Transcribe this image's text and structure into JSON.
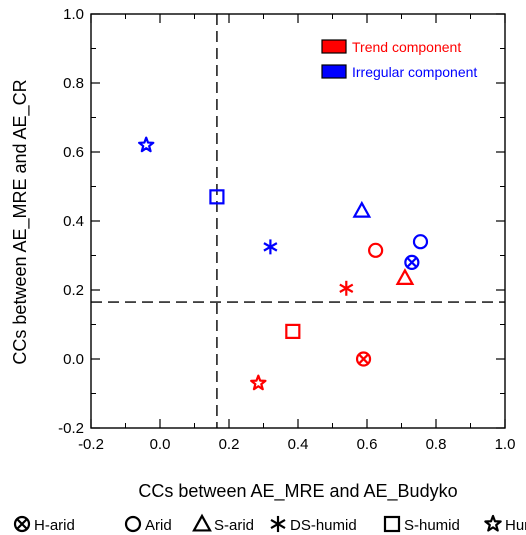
{
  "chart_data": {
    "type": "scatter",
    "xlabel": "CCs between AE_MRE and AE_Budyko",
    "ylabel": "CCs between AE_MRE and AE_CR",
    "xlim": [
      -0.2,
      1.0
    ],
    "ylim": [
      -0.2,
      1.0
    ],
    "x_ticks": [
      "-0.2",
      "0.0",
      "0.2",
      "0.4",
      "0.6",
      "0.8",
      "1.0"
    ],
    "y_ticks": [
      "-0.2",
      "0.0",
      "0.2",
      "0.4",
      "0.6",
      "0.8",
      "1.0"
    ],
    "reference_lines": {
      "x": 0.165,
      "y": 0.165,
      "style": "dashed"
    },
    "grid": false,
    "legend_placement": "top-right",
    "series": [
      {
        "name": "Trend component",
        "color": "#ff0000",
        "points": [
          {
            "climate": "H-arid",
            "marker": "circle-x",
            "x": 0.59,
            "y": 0.0
          },
          {
            "climate": "Arid",
            "marker": "circle",
            "x": 0.625,
            "y": 0.315
          },
          {
            "climate": "S-arid",
            "marker": "triangle",
            "x": 0.71,
            "y": 0.235
          },
          {
            "climate": "DS-humid",
            "marker": "asterisk",
            "x": 0.54,
            "y": 0.205
          },
          {
            "climate": "S-humid",
            "marker": "square",
            "x": 0.385,
            "y": 0.08
          },
          {
            "climate": "Humid",
            "marker": "star",
            "x": 0.285,
            "y": -0.07
          }
        ]
      },
      {
        "name": "Irregular component",
        "color": "#0000ff",
        "points": [
          {
            "climate": "H-arid",
            "marker": "circle-x",
            "x": 0.73,
            "y": 0.28
          },
          {
            "climate": "Arid",
            "marker": "circle",
            "x": 0.755,
            "y": 0.34
          },
          {
            "climate": "S-arid",
            "marker": "triangle",
            "x": 0.585,
            "y": 0.43
          },
          {
            "climate": "DS-humid",
            "marker": "asterisk",
            "x": 0.32,
            "y": 0.325
          },
          {
            "climate": "S-humid",
            "marker": "square",
            "x": 0.165,
            "y": 0.47
          },
          {
            "climate": "Humid",
            "marker": "star",
            "x": -0.04,
            "y": 0.62
          }
        ]
      }
    ],
    "shape_legend": [
      {
        "marker": "circle-x",
        "label": "H-arid"
      },
      {
        "marker": "circle",
        "label": "Arid"
      },
      {
        "marker": "triangle",
        "label": "S-arid"
      },
      {
        "marker": "asterisk",
        "label": "DS-humid"
      },
      {
        "marker": "square",
        "label": "S-humid"
      },
      {
        "marker": "star",
        "label": "Humid"
      }
    ]
  }
}
